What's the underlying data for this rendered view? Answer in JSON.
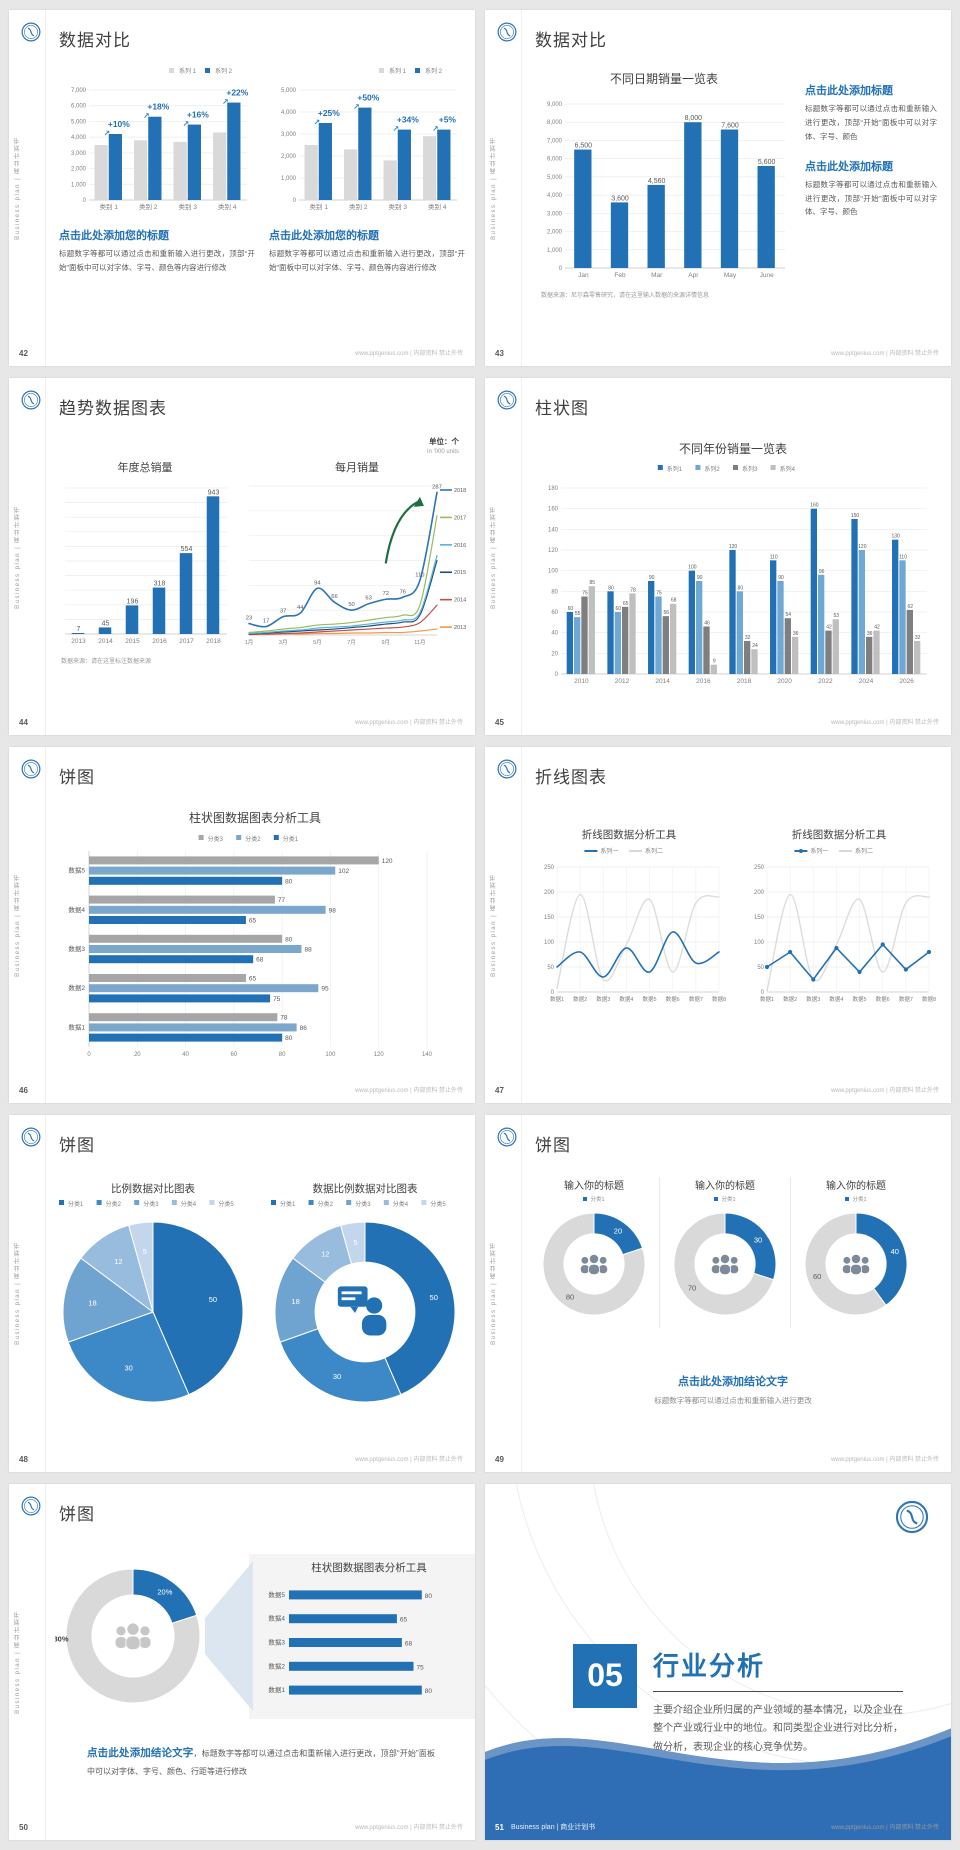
{
  "footer": {
    "site": "www.pptgenius.com | 内部资料 禁止外传"
  },
  "sidebar_text": "Business plan | 商业计划书",
  "palette": {
    "accent": "#2271b5",
    "light_blue": "#7ba7cc",
    "gray_bar": "#d9d9d9",
    "text": "#595959"
  },
  "slides": {
    "s42": {
      "page": "42",
      "title": "数据对比",
      "h1": "点击此处添加您的标题",
      "body": "标题数字等都可以通过点击和重新输入进行更改，顶部“开始”面板中可以对字体、字号、颜色等内容进行修改"
    },
    "s43": {
      "page": "43",
      "title": "数据对比",
      "h": "点击此处添加标题",
      "body": "标题数字等都可以通过点击和重新输入进行更改，顶部“开始”面板中可以对字体、字号、颜色",
      "source": "数据来源：尼尔森零售研究，请在这里输入数据的来源详情信息"
    },
    "s44": {
      "page": "44",
      "title": "趋势数据图表",
      "unit1": "单位：个",
      "unit2": "in '000 units",
      "source": "数据来源：请在这里标注数据来源"
    },
    "s45": {
      "page": "45",
      "title": "柱状图"
    },
    "s46": {
      "page": "46",
      "title": "饼图"
    },
    "s47": {
      "page": "47",
      "title": "折线图表"
    },
    "s48": {
      "page": "48",
      "title": "饼图"
    },
    "s49": {
      "page": "49",
      "title": "饼图",
      "card_title": "输入你的标题",
      "legend": "分类1",
      "conclusion": "点击此处添加结论文字",
      "sub": "标题数字等都可以通过点击和重新输入进行更改"
    },
    "s50": {
      "page": "50",
      "title": "饼图",
      "conclusion_bold": "点击此处添加结论文字",
      "conclusion_rest": "，标题数字等都可以通过点击和重新输入进行更改，顶部“开始”面板中可以对字体、字号、颜色、行距等进行修改"
    },
    "s51": {
      "page": "51",
      "number": "05",
      "title": "行业分析",
      "body": "主要介绍企业所归属的产业领域的基本情况，以及企业在整个产业或行业中的地位。和同类型企业进行对比分析，做分析，表现企业的核心竞争优势。",
      "footer_brand": "Business plan | 商业计划书"
    }
  },
  "chart_data": {
    "c42a": {
      "type": "bar",
      "legend": [
        "系列 1",
        "系列 2"
      ],
      "legend_pos": "tr",
      "categories": [
        "类别 1",
        "类别 2",
        "类别 3",
        "类别 4"
      ],
      "colors": [
        "#d9d9d9",
        "#2271b5"
      ],
      "series": [
        {
          "name": "系列 1",
          "color": "#d9d9d9",
          "values": [
            3500,
            3800,
            3700,
            4300
          ]
        },
        {
          "name": "系列 2",
          "color": "#2271b5",
          "values": [
            4200,
            5300,
            4800,
            6200
          ]
        }
      ],
      "pct_labels": [
        "+10%",
        "+18%",
        "+16%",
        "+22%"
      ],
      "ylim": [
        0,
        7000
      ],
      "ytick": 1000
    },
    "c42b": {
      "type": "bar",
      "legend": [
        "系列 1",
        "系列 2"
      ],
      "legend_pos": "tr",
      "categories": [
        "类别 1",
        "类别 2",
        "类别 3",
        "类别 4"
      ],
      "colors": [
        "#d9d9d9",
        "#2271b5"
      ],
      "series": [
        {
          "name": "系列 1",
          "color": "#d9d9d9",
          "values": [
            2500,
            2300,
            1800,
            2900
          ]
        },
        {
          "name": "系列 2",
          "color": "#2271b5",
          "values": [
            3500,
            4200,
            3200,
            3200
          ]
        }
      ],
      "pct_labels": [
        "+25%",
        "+50%",
        "+34%",
        "+5%"
      ],
      "ylim": [
        0,
        5000
      ],
      "ytick": 1000
    },
    "c43": {
      "type": "bar",
      "title": "不同日期销量一览表",
      "title_size": 12,
      "categories": [
        "Jan",
        "Feb",
        "Mar",
        "Apr",
        "May",
        "June"
      ],
      "series": [
        {
          "name": "销量",
          "color": "#2271b5",
          "values": [
            6500,
            3600,
            4560,
            8000,
            7600,
            5600
          ]
        }
      ],
      "value_labels": [
        "6,500",
        "3,600",
        "4,560",
        "8,000",
        "7,600",
        "5,600"
      ],
      "show_values": true,
      "vls": 7,
      "ylim": [
        0,
        9000
      ],
      "ytick": 1000
    },
    "c44a": {
      "type": "bar",
      "title": "年度总销量",
      "title_size": 11,
      "categories": [
        "2013",
        "2014",
        "2015",
        "2016",
        "2017",
        "2018"
      ],
      "series": [
        {
          "name": "年度总销量",
          "color": "#2271b5",
          "values": [
            7,
            45,
            196,
            318,
            554,
            943
          ]
        }
      ],
      "show_values": true,
      "vls": 7,
      "ylim": [
        0,
        1000
      ],
      "ytick": 100,
      "hide_yticks": true,
      "mleft": 10
    },
    "c44b": {
      "type": "line",
      "title": "每月销量",
      "title_size": 11,
      "x_labels": [
        "1月",
        "",
        "3月",
        "",
        "5月",
        "",
        "7月",
        "",
        "9月",
        "",
        "11月",
        ""
      ],
      "ylim": [
        0,
        300
      ],
      "ytick": 50,
      "hide_yticks": true,
      "mleft": 8,
      "mright": 36,
      "arrow": true,
      "legend_right": {
        "labels": [
          "2018",
          "2017",
          "2016",
          "2015",
          "2014",
          "2013"
        ],
        "colors": [
          "#2e75b6",
          "#9bbb59",
          "#56b4d8",
          "#1f4e79",
          "#c0504d",
          "#f79646"
        ]
      },
      "series": [
        {
          "name": "2018",
          "color": "#2e75b6",
          "width": 1.6,
          "smooth": true,
          "labels": true,
          "values": [
            23,
            17,
            37,
            44,
            94,
            66,
            50,
            63,
            72,
            76,
            110,
            287
          ]
        },
        {
          "name": "2017",
          "color": "#9bbb59",
          "smooth": true,
          "values": [
            5,
            8,
            12,
            15,
            20,
            22,
            25,
            30,
            35,
            40,
            60,
            240
          ]
        },
        {
          "name": "2016",
          "color": "#56b4d8",
          "smooth": true,
          "values": [
            3,
            5,
            8,
            10,
            14,
            16,
            18,
            22,
            26,
            30,
            45,
            160
          ]
        },
        {
          "name": "2015",
          "color": "#1f4e79",
          "smooth": true,
          "values": [
            2,
            4,
            6,
            8,
            10,
            12,
            15,
            18,
            22,
            26,
            40,
            150
          ]
        },
        {
          "name": "2014",
          "color": "#c0504d",
          "smooth": true,
          "values": [
            1,
            2,
            3,
            4,
            6,
            8,
            10,
            12,
            14,
            16,
            25,
            60
          ]
        },
        {
          "name": "2013",
          "color": "#f79646",
          "smooth": true,
          "values": [
            1,
            1,
            2,
            2,
            3,
            3,
            4,
            4,
            5,
            5,
            8,
            12
          ]
        }
      ]
    },
    "c45": {
      "type": "bar",
      "title": "不同年份销量一览表",
      "title_size": 12,
      "legend": [
        "系列1",
        "系列2",
        "系列3",
        "系列4"
      ],
      "legend_pos": "center",
      "colors": [
        "#2271b5",
        "#6fa8d4",
        "#7f7f7f",
        "#bfbfbf"
      ],
      "categories": [
        "2010",
        "2012",
        "2014",
        "2016",
        "2018",
        "2020",
        "2022",
        "2024",
        "2026"
      ],
      "series": [
        {
          "name": "系列1",
          "color": "#2271b5",
          "values": [
            60,
            80,
            90,
            100,
            120,
            110,
            160,
            150,
            130
          ]
        },
        {
          "name": "系列2",
          "color": "#6fa8d4",
          "values": [
            55,
            60,
            75,
            90,
            80,
            90,
            96,
            120,
            110
          ]
        },
        {
          "name": "系列3",
          "color": "#7f7f7f",
          "values": [
            75,
            65,
            56,
            46,
            32,
            54,
            42,
            36,
            62
          ]
        },
        {
          "name": "系列4",
          "color": "#bfbfbf",
          "values": [
            85,
            78,
            68,
            9,
            24,
            36,
            53,
            42,
            32
          ]
        }
      ],
      "show_values": true,
      "vls": 5,
      "ylim": [
        0,
        180
      ],
      "ytick": 20
    },
    "c46": {
      "type": "hbar",
      "title": "柱状图数据图表分析工具",
      "title_size": 12,
      "legend": [
        "分类3",
        "分类2",
        "分类1"
      ],
      "colors": [
        "#a6a6a6",
        "#7ba7cc",
        "#2271b5"
      ],
      "categories": [
        "数据5",
        "数据4",
        "数据3",
        "数据2",
        "数据1"
      ],
      "series": [
        {
          "name": "分类3",
          "color": "#a6a6a6",
          "values": [
            120,
            77,
            80,
            65,
            78
          ]
        },
        {
          "name": "分类2",
          "color": "#7ba7cc",
          "values": [
            102,
            98,
            88,
            95,
            86
          ]
        },
        {
          "name": "分类1",
          "color": "#2271b5",
          "values": [
            80,
            65,
            68,
            75,
            80
          ]
        }
      ],
      "show_values": true,
      "xlim": [
        0,
        140
      ],
      "xtick": 20
    },
    "c47a": {
      "type": "line",
      "title": "折线图数据分析工具",
      "title_size": 10.5,
      "legend": [
        "系列一",
        "系列二"
      ],
      "legend_colors": [
        "#2271b5",
        "#d9d9d9"
      ],
      "vgrid": true,
      "x_labels": [
        "数据1",
        "数据2",
        "数据3",
        "数据4",
        "数据5",
        "数据6",
        "数据7",
        "数据8"
      ],
      "ylim": [
        0,
        250
      ],
      "ytick": 50,
      "series": [
        {
          "name": "系列一",
          "color": "#2271b5",
          "width": 1.6,
          "smooth": true,
          "values": [
            50,
            80,
            30,
            88,
            40,
            120,
            58,
            80
          ]
        },
        {
          "name": "系列二",
          "color": "#dcdcdc",
          "width": 1.4,
          "smooth": true,
          "values": [
            8,
            195,
            25,
            95,
            185,
            40,
            178,
            190
          ]
        }
      ]
    },
    "c47b": {
      "type": "line",
      "title": "折线图数据分析工具",
      "title_size": 10.5,
      "legend": [
        "系列一",
        "系列二"
      ],
      "legend_colors": [
        "#2271b5",
        "#d9d9d9"
      ],
      "vgrid": true,
      "x_labels": [
        "数据1",
        "数据2",
        "数据3",
        "数据4",
        "数据5",
        "数据6",
        "数据7",
        "数据8"
      ],
      "ylim": [
        0,
        250
      ],
      "ytick": 50,
      "series": [
        {
          "name": "系列一",
          "color": "#2271b5",
          "width": 1.6,
          "markers": true,
          "values": [
            50,
            80,
            25,
            88,
            40,
            95,
            45,
            80
          ]
        },
        {
          "name": "系列二",
          "color": "#dcdcdc",
          "width": 1.4,
          "smooth": true,
          "values": [
            2,
            195,
            25,
            95,
            185,
            40,
            178,
            190
          ]
        }
      ]
    },
    "c48a": {
      "type": "pie",
      "title": "比例数据对比图表",
      "title_size": 10.5,
      "legend": [
        "分类1",
        "分类2",
        "分类3",
        "分类4",
        "分类5"
      ],
      "values": [
        50,
        30,
        18,
        12,
        5
      ],
      "colors": [
        "#2271b5",
        "#3d88c7",
        "#6fa3d0",
        "#97bcde",
        "#c3d6eb"
      ],
      "slice_labels": [
        {
          "text": "50",
          "fill": "#fff"
        },
        {
          "text": "30",
          "fill": "#fff"
        },
        {
          "text": "18",
          "fill": "#fff"
        },
        {
          "text": "12",
          "fill": "#fff"
        },
        {
          "text": "5",
          "fill": "#fff"
        }
      ]
    },
    "c48b": {
      "type": "pie",
      "donut": 0.56,
      "icon": "speaker",
      "title": "数据比例数据对比图表",
      "title_size": 10.5,
      "legend": [
        "分类1",
        "分类2",
        "分类3",
        "分类4",
        "分类5"
      ],
      "values": [
        50,
        30,
        18,
        12,
        5
      ],
      "colors": [
        "#2271b5",
        "#3d88c7",
        "#6fa3d0",
        "#97bcde",
        "#c3d6eb"
      ],
      "slice_labels": [
        {
          "text": "50",
          "fill": "#fff"
        },
        {
          "text": "30",
          "fill": "#fff"
        },
        {
          "text": "18",
          "fill": "#fff"
        },
        {
          "text": "12",
          "fill": "#fff"
        },
        {
          "text": "5",
          "fill": "#fff"
        }
      ]
    },
    "c49a": {
      "type": "pie",
      "donut": 0.6,
      "icon": "people",
      "icon_color": "#7d8a99",
      "values": [
        20,
        80
      ],
      "colors": [
        "#2271b5",
        "#d9d9d9"
      ],
      "slice_labels": [
        {
          "text": "20",
          "fill": "#fff"
        },
        {
          "text": "80",
          "fill": "#595959"
        }
      ]
    },
    "c49b": {
      "type": "pie",
      "donut": 0.6,
      "icon": "people",
      "icon_color": "#7d8a99",
      "values": [
        30,
        70
      ],
      "colors": [
        "#2271b5",
        "#d9d9d9"
      ],
      "slice_labels": [
        {
          "text": "30",
          "fill": "#fff"
        },
        {
          "text": "70",
          "fill": "#595959"
        }
      ]
    },
    "c49c": {
      "type": "pie",
      "donut": 0.6,
      "icon": "people",
      "icon_color": "#7d8a99",
      "values": [
        40,
        60
      ],
      "colors": [
        "#2271b5",
        "#d9d9d9"
      ],
      "slice_labels": [
        {
          "text": "40",
          "fill": "#fff"
        },
        {
          "text": "60",
          "fill": "#595959"
        }
      ]
    },
    "c50a": {
      "type": "pie",
      "donut": 0.62,
      "icon": "people",
      "icon_color": "#c7c7c7",
      "values": [
        20,
        80
      ],
      "colors": [
        "#2271b5",
        "#d9d9d9"
      ],
      "slice_labels": [
        {
          "text": "20%",
          "fill": "#fff"
        },
        {
          "text": "80%",
          "fill": "#404040",
          "ox": -72,
          "oy": 3,
          "bold": true
        }
      ]
    },
    "c50b": {
      "type": "hbar",
      "title": "柱状图数据图表分析工具",
      "title_size": 10.5,
      "categories": [
        "数据5",
        "数据4",
        "数据3",
        "数据2",
        "数据1"
      ],
      "series": [
        {
          "name": "数据",
          "color": "#2271b5",
          "values": [
            80,
            65,
            68,
            75,
            80
          ]
        }
      ],
      "show_values": true,
      "xlim": [
        0,
        100
      ],
      "hide_xticks": true,
      "bh": 9
    }
  }
}
